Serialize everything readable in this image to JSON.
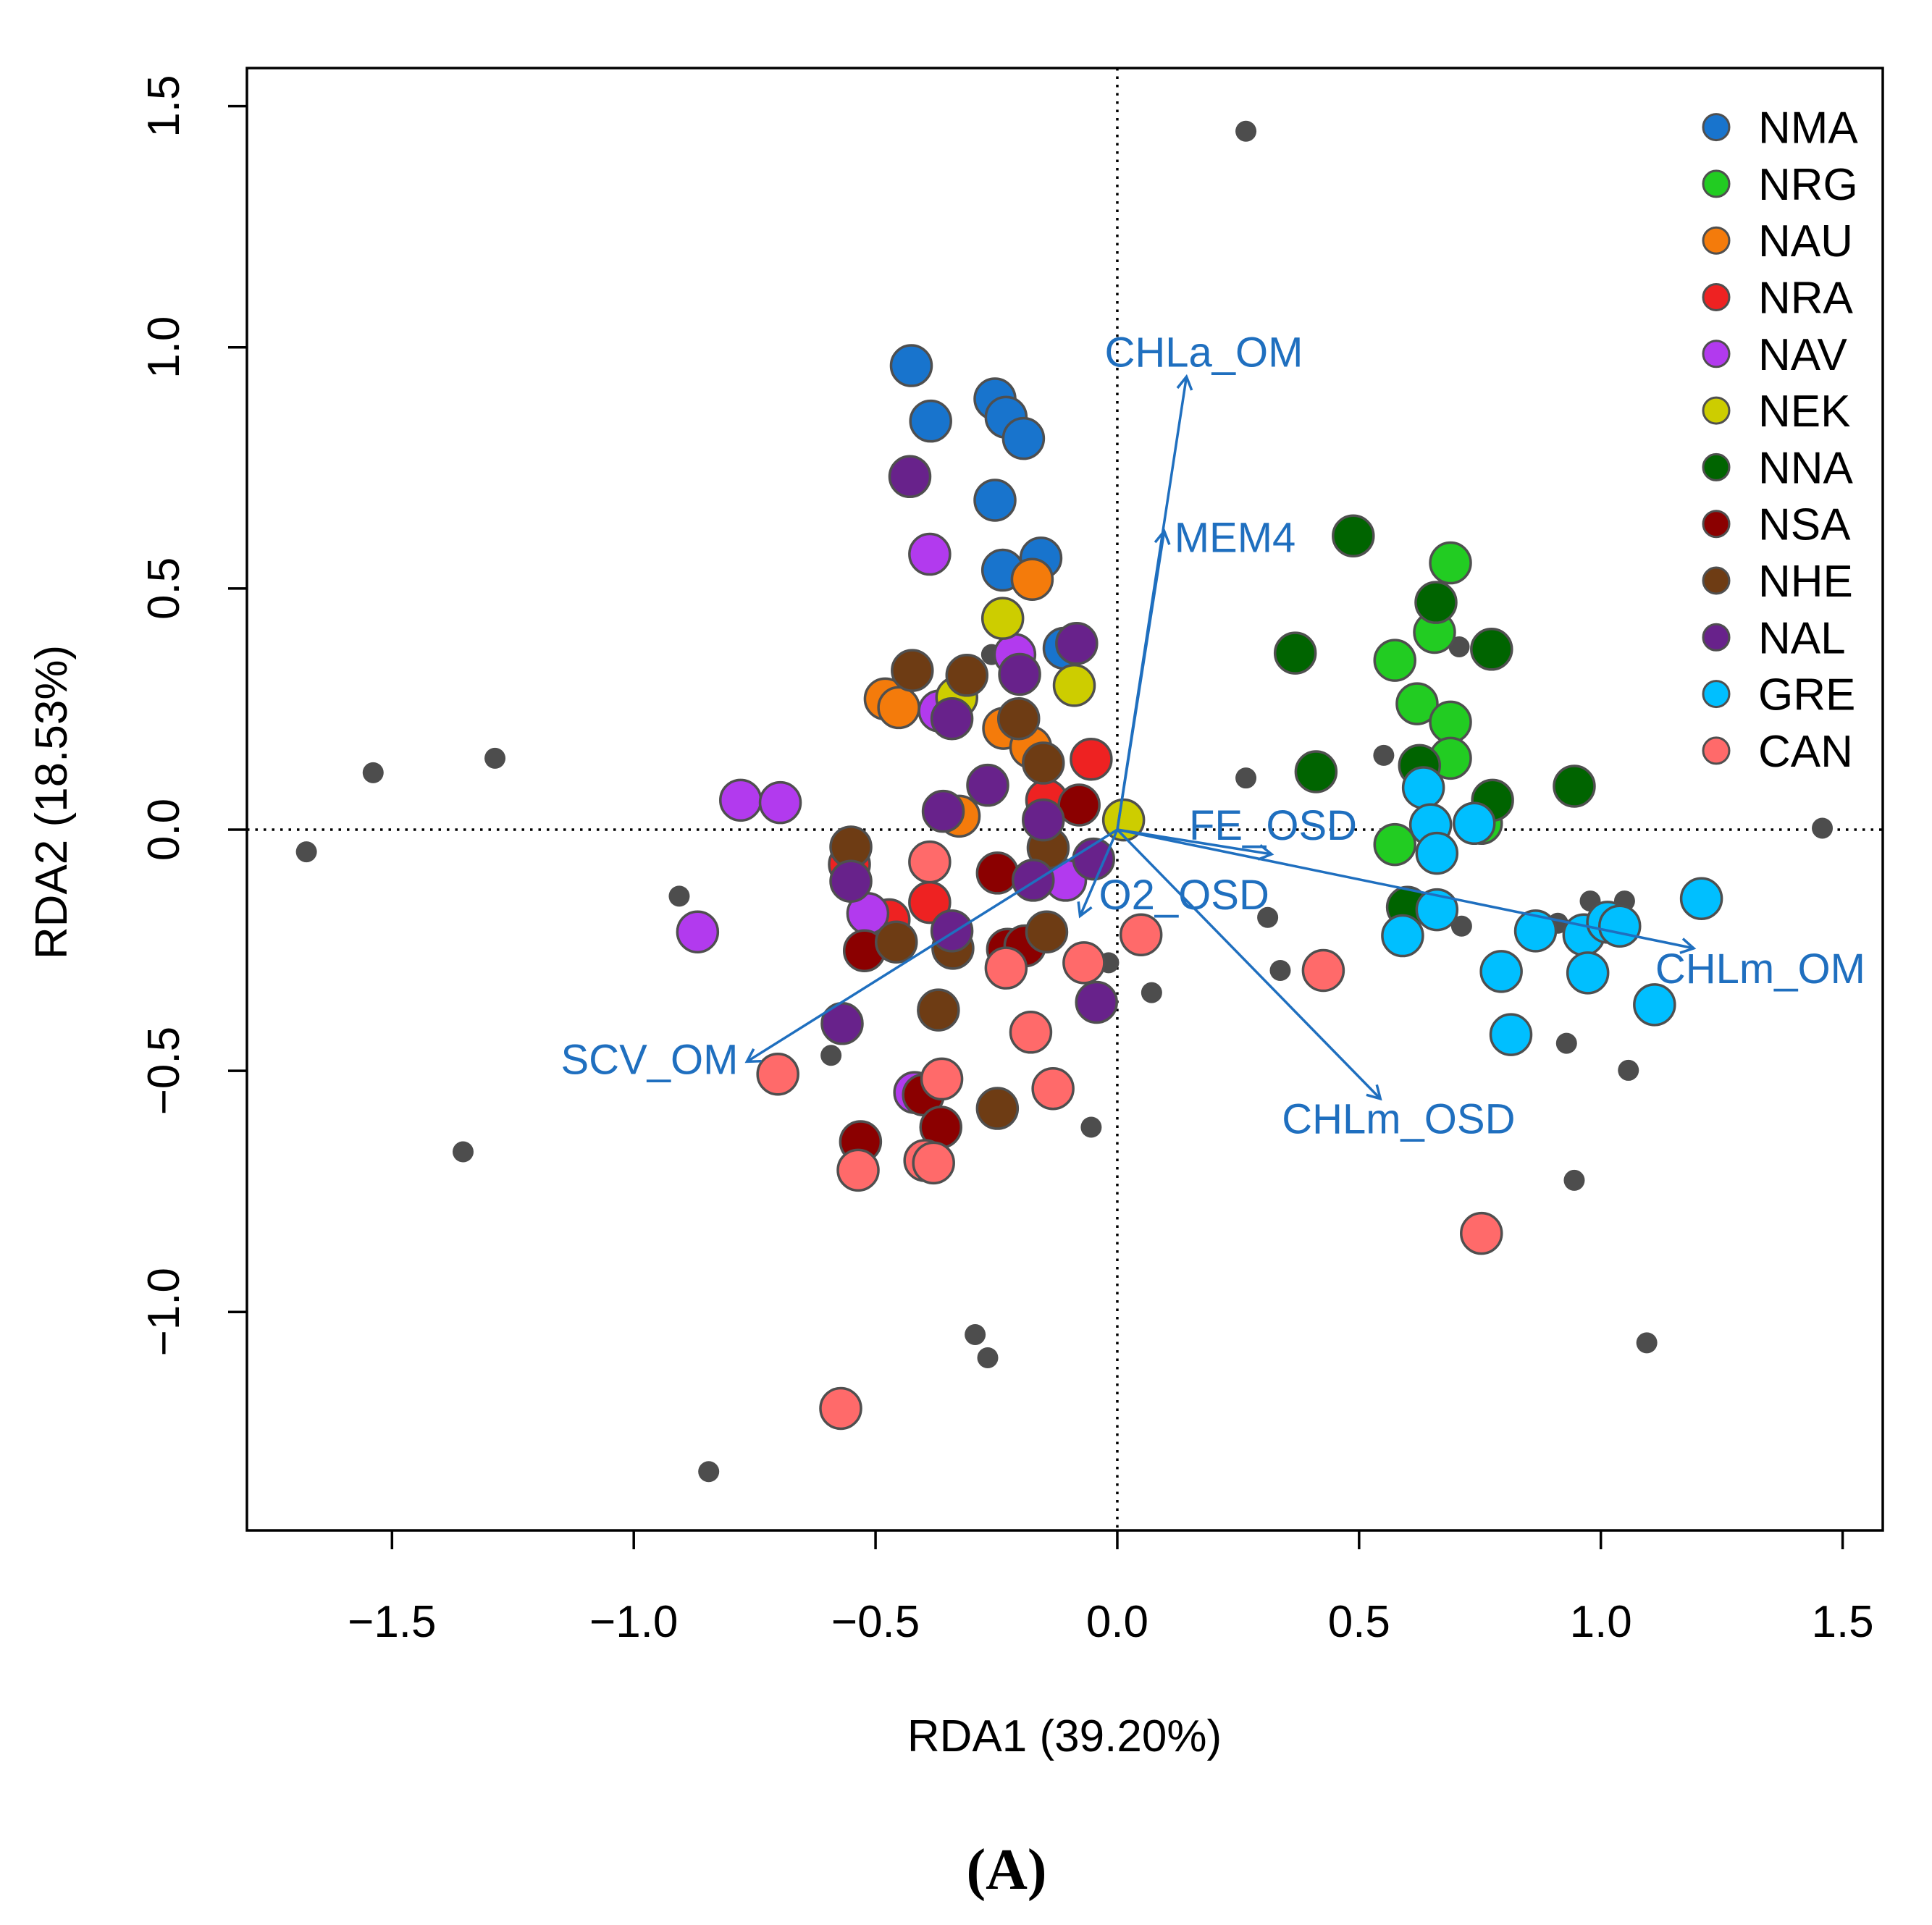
{
  "chart_data": {
    "type": "scatter",
    "xlabel": "RDA1 (39.20%)",
    "ylabel": "RDA2 (18.53%)",
    "xlim": [
      -1.8,
      1.583
    ],
    "ylim": [
      -1.453,
      1.579
    ],
    "xticks": [
      -1.5,
      -1.0,
      -0.5,
      0.0,
      0.5,
      1.0,
      1.5
    ],
    "xtick_labels": [
      "−1.5",
      "−1.0",
      "−0.5",
      "0.0",
      "0.5",
      "1.0",
      "1.5"
    ],
    "yticks": [
      -1.0,
      -0.5,
      0.0,
      0.5,
      1.0,
      1.5
    ],
    "ytick_labels": [
      "−1.0",
      "−0.5",
      "0.0",
      "0.5",
      "1.0",
      "1.5"
    ],
    "reference_lines": {
      "x": 0,
      "y": 0
    },
    "legend_position": "top-right",
    "point_stroke": "#4F4F4F",
    "series": [
      {
        "name": "NMA",
        "color": "#1874CD",
        "points": [
          [
            -0.426,
            0.962
          ],
          [
            -0.386,
            0.847
          ],
          [
            -0.253,
            0.893
          ],
          [
            -0.23,
            0.855
          ],
          [
            -0.194,
            0.811
          ],
          [
            -0.253,
            0.683
          ],
          [
            -0.158,
            0.563
          ],
          [
            -0.237,
            0.538
          ],
          [
            -0.11,
            0.376
          ]
        ]
      },
      {
        "name": "NRG",
        "color": "#22CC22",
        "points": [
          [
            0.689,
            0.553
          ],
          [
            0.656,
            0.409
          ],
          [
            0.574,
            0.351
          ],
          [
            0.62,
            0.261
          ],
          [
            0.689,
            0.223
          ],
          [
            0.689,
            0.148
          ],
          [
            0.574,
            -0.031
          ],
          [
            0.753,
            0.013
          ]
        ]
      },
      {
        "name": "NAU",
        "color": "#F47B0B",
        "points": [
          [
            -0.176,
            0.519
          ],
          [
            -0.48,
            0.271
          ],
          [
            -0.452,
            0.253
          ],
          [
            -0.235,
            0.21
          ],
          [
            -0.179,
            0.171
          ],
          [
            -0.327,
            0.028
          ]
        ]
      },
      {
        "name": "NRA",
        "color": "#EE2222",
        "points": [
          [
            -0.054,
            0.146
          ],
          [
            -0.554,
            -0.072
          ],
          [
            -0.388,
            -0.151
          ],
          [
            -0.146,
            0.061
          ],
          [
            -0.472,
            -0.187
          ]
        ]
      },
      {
        "name": "NAV",
        "color": "#B23AEE",
        "points": [
          [
            -0.388,
            0.571
          ],
          [
            -0.212,
            0.363
          ],
          [
            -0.368,
            0.246
          ],
          [
            -0.779,
            0.061
          ],
          [
            -0.697,
            0.056
          ],
          [
            -0.107,
            -0.105
          ],
          [
            -0.516,
            -0.174
          ],
          [
            -0.868,
            -0.212
          ],
          [
            -0.419,
            -0.545
          ]
        ]
      },
      {
        "name": "NEK",
        "color": "#CDCD00",
        "points": [
          [
            -0.237,
            0.438
          ],
          [
            -0.089,
            0.299
          ],
          [
            -0.332,
            0.274
          ],
          [
            0.013,
            0.02
          ]
        ]
      },
      {
        "name": "NNA",
        "color": "#006400",
        "points": [
          [
            0.488,
            0.609
          ],
          [
            0.368,
            0.366
          ],
          [
            0.411,
            0.12
          ],
          [
            0.659,
            0.471
          ],
          [
            0.774,
            0.374
          ],
          [
            0.625,
            0.133
          ],
          [
            0.776,
            0.061
          ],
          [
            0.945,
            0.09
          ],
          [
            0.6,
            -0.161
          ]
        ]
      },
      {
        "name": "NSA",
        "color": "#8B0000",
        "points": [
          [
            -0.079,
            0.051
          ],
          [
            -0.248,
            -0.09
          ],
          [
            -0.523,
            -0.251
          ],
          [
            -0.227,
            -0.248
          ],
          [
            -0.191,
            -0.241
          ],
          [
            -0.401,
            -0.55
          ],
          [
            -0.365,
            -0.617
          ],
          [
            -0.531,
            -0.647
          ]
        ]
      },
      {
        "name": "NHE",
        "color": "#6E3C14",
        "points": [
          [
            -0.424,
            0.33
          ],
          [
            -0.311,
            0.32
          ],
          [
            -0.204,
            0.23
          ],
          [
            -0.153,
            0.138
          ],
          [
            -0.551,
            -0.036
          ],
          [
            -0.143,
            -0.038
          ],
          [
            -0.457,
            -0.233
          ],
          [
            -0.34,
            -0.246
          ],
          [
            -0.146,
            -0.212
          ],
          [
            -0.37,
            -0.374
          ],
          [
            -0.248,
            -0.578
          ]
        ]
      },
      {
        "name": "NAL",
        "color": "#68228B",
        "points": [
          [
            -0.429,
            0.732
          ],
          [
            -0.084,
            0.386
          ],
          [
            -0.202,
            0.322
          ],
          [
            -0.342,
            0.23
          ],
          [
            -0.268,
            0.092
          ],
          [
            -0.36,
            0.038
          ],
          [
            -0.153,
            0.02
          ],
          [
            -0.551,
            -0.107
          ],
          [
            -0.174,
            -0.105
          ],
          [
            -0.342,
            -0.21
          ],
          [
            -0.569,
            -0.402
          ],
          [
            -0.043,
            -0.358
          ],
          [
            -0.049,
            -0.061
          ]
        ]
      },
      {
        "name": "GRE",
        "color": "#00BFFF",
        "points": [
          [
            0.633,
            0.087
          ],
          [
            0.648,
            0.01
          ],
          [
            0.738,
            0.013
          ],
          [
            0.661,
            -0.049
          ],
          [
            0.661,
            -0.166
          ],
          [
            0.59,
            -0.22
          ],
          [
            0.865,
            -0.21
          ],
          [
            0.965,
            -0.218
          ],
          [
            1.014,
            -0.192
          ],
          [
            1.039,
            -0.2
          ],
          [
            1.208,
            -0.143
          ],
          [
            0.794,
            -0.294
          ],
          [
            0.973,
            -0.297
          ],
          [
            0.814,
            -0.425
          ],
          [
            1.111,
            -0.363
          ]
        ]
      },
      {
        "name": "CAN",
        "color": "#FF6A6A",
        "points": [
          [
            -0.388,
            -0.067
          ],
          [
            0.049,
            -0.218
          ],
          [
            -0.069,
            -0.276
          ],
          [
            -0.23,
            -0.287
          ],
          [
            0.426,
            -0.292
          ],
          [
            -0.179,
            -0.42
          ],
          [
            -0.702,
            -0.507
          ],
          [
            -0.363,
            -0.517
          ],
          [
            -0.133,
            -0.537
          ],
          [
            -0.536,
            -0.706
          ],
          [
            -0.398,
            -0.686
          ],
          [
            -0.38,
            -0.691
          ],
          [
            0.753,
            -0.837
          ],
          [
            -0.572,
            -1.2
          ]
        ]
      }
    ],
    "background_points": {
      "color": "#4D4D4D",
      "points": [
        [
          0.266,
          1.448
        ],
        [
          -1.539,
          0.118
        ],
        [
          -1.287,
          0.148
        ],
        [
          -1.677,
          -0.046
        ],
        [
          -0.906,
          -0.138
        ],
        [
          -1.353,
          -0.668
        ],
        [
          -0.845,
          -1.331
        ],
        [
          -0.294,
          -1.047
        ],
        [
          -0.268,
          -1.095
        ],
        [
          -0.054,
          -0.617
        ],
        [
          0.071,
          -0.338
        ],
        [
          0.266,
          0.107
        ],
        [
          0.551,
          0.154
        ],
        [
          0.707,
          0.379
        ],
        [
          0.311,
          -0.182
        ],
        [
          0.337,
          -0.292
        ],
        [
          0.712,
          -0.2
        ],
        [
          0.911,
          -0.194
        ],
        [
          0.978,
          -0.148
        ],
        [
          1.049,
          -0.148
        ],
        [
          0.929,
          -0.443
        ],
        [
          1.057,
          -0.499
        ],
        [
          0.945,
          -0.727
        ],
        [
          1.095,
          -1.064
        ],
        [
          1.458,
          0.003
        ],
        [
          -0.592,
          -0.468
        ],
        [
          -0.018,
          -0.276
        ],
        [
          -0.26,
          0.363
        ]
      ]
    },
    "vector_color": "#1F6FBF",
    "vectors": [
      {
        "name": "CHLa_OM",
        "x": 0.143,
        "y": 0.939
      },
      {
        "name": "MEM4",
        "x": 0.097,
        "y": 0.619
      },
      {
        "name": "FE_OSD",
        "x": 0.319,
        "y": -0.051
      },
      {
        "name": "O2_OSD",
        "x": -0.077,
        "y": -0.179
      },
      {
        "name": "CHLm_OM",
        "x": 1.192,
        "y": -0.246
      },
      {
        "name": "CHLm_OSD",
        "x": 0.544,
        "y": -0.558
      },
      {
        "name": "SCV_OM",
        "x": -0.766,
        "y": -0.481
      }
    ]
  },
  "caption": "(A)"
}
